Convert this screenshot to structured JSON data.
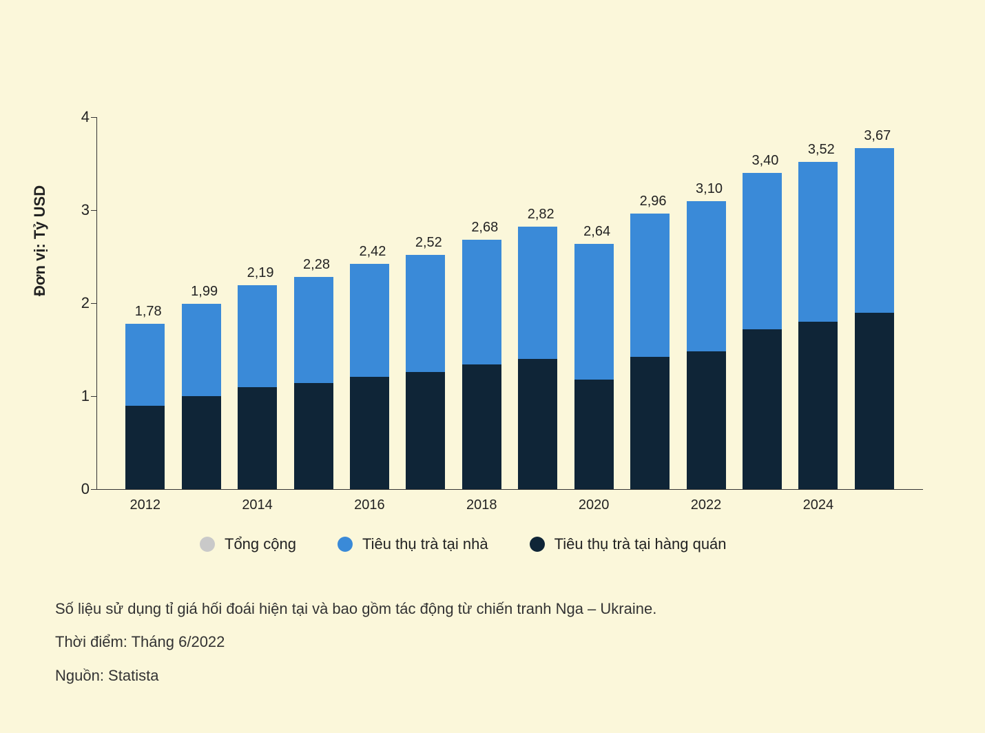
{
  "chart": {
    "type": "stacked-bar",
    "background_color": "#fbf7da",
    "plot_background": "transparent",
    "y_axis_label": "Đơn vị: Tỷ USD",
    "y_axis_label_fontsize": 22,
    "label_fontsize": 20,
    "axis_color": "#333333",
    "ylim": [
      0,
      4
    ],
    "ytick_step": 1,
    "yticks": [
      0,
      1,
      2,
      3,
      4
    ],
    "bar_width": 0.7,
    "years": [
      2012,
      2013,
      2014,
      2015,
      2016,
      2017,
      2018,
      2019,
      2020,
      2021,
      2022,
      2023,
      2024,
      2025
    ],
    "x_tick_labels": [
      "2012",
      "2014",
      "2016",
      "2018",
      "2020",
      "2022",
      "2024"
    ],
    "x_tick_years": [
      2012,
      2014,
      2016,
      2018,
      2020,
      2022,
      2024
    ],
    "series": [
      {
        "key": "out_of_home",
        "label": "Tiêu thụ trà tại hàng quán",
        "color": "#0f2537",
        "values": [
          0.9,
          1.0,
          1.1,
          1.14,
          1.21,
          1.26,
          1.34,
          1.4,
          1.18,
          1.42,
          1.48,
          1.72,
          1.8,
          1.9
        ]
      },
      {
        "key": "at_home",
        "label": "Tiêu thụ trà tại nhà",
        "color": "#3a8ad8",
        "values": [
          0.88,
          0.99,
          1.09,
          1.14,
          1.21,
          1.26,
          1.34,
          1.42,
          1.46,
          1.54,
          1.62,
          1.68,
          1.72,
          1.77
        ]
      }
    ],
    "totals_labels": [
      "1,78",
      "1,99",
      "2,19",
      "2,28",
      "2,42",
      "2,52",
      "2,68",
      "2,82",
      "2,64",
      "2,96",
      "3,10",
      "3,40",
      "3,52",
      "3,67"
    ],
    "totals_values": [
      1.78,
      1.99,
      2.19,
      2.28,
      2.42,
      2.52,
      2.68,
      2.82,
      2.64,
      2.96,
      3.1,
      3.4,
      3.52,
      3.67
    ],
    "legend": {
      "position": "bottom",
      "items": [
        {
          "label": "Tổng cộng",
          "color": "#c9c9c9"
        },
        {
          "label": "Tiêu thụ trà tại nhà",
          "color": "#3a8ad8"
        },
        {
          "label": "Tiêu thụ trà tại hàng quán",
          "color": "#0f2537"
        }
      ]
    }
  },
  "footnotes": {
    "note": "Số liệu sử dụng tỉ giá hối đoái hiện tại và bao gồm tác động từ chiến tranh Nga – Ukraine.",
    "time": "Thời điểm: Tháng 6/2022",
    "source": "Nguồn: Statista"
  }
}
